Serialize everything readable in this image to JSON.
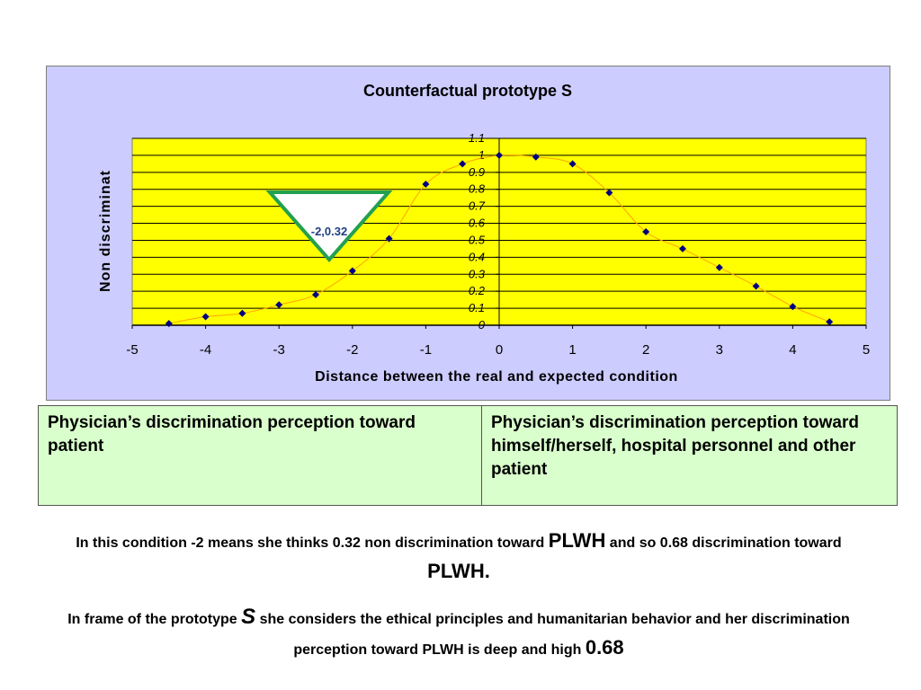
{
  "chart_data": {
    "type": "scatter",
    "title": "Counterfactual prototype S",
    "xlabel": "Distance between the real and expected condition",
    "ylabel": "Non discriminat",
    "xlim": [
      -5,
      5
    ],
    "ylim": [
      0,
      1.1
    ],
    "x_ticks": [
      -5,
      -4,
      -3,
      -2,
      -1,
      0,
      1,
      2,
      3,
      4,
      5
    ],
    "y_ticks": [
      "0",
      "0.1",
      "0.2",
      "0.3",
      "0.4",
      "0.5",
      "0.6",
      "0.7",
      "0.8",
      "0.9",
      "1",
      "1.1"
    ],
    "grid": true,
    "series": [
      {
        "x": [
          -4.5,
          -4,
          -3.5,
          -3,
          -2.5,
          -2,
          -1.5,
          -1,
          -0.5,
          0,
          0.5,
          1,
          1.5,
          2,
          2.5,
          3,
          3.5,
          4,
          4.5
        ],
        "y": [
          0.01,
          0.05,
          0.07,
          0.12,
          0.18,
          0.32,
          0.51,
          0.83,
          0.95,
          1.0,
          0.99,
          0.95,
          0.78,
          0.55,
          0.45,
          0.34,
          0.23,
          0.11,
          0.02
        ],
        "color": "#000080",
        "line_color": "#ffa500"
      }
    ],
    "annotation": {
      "text": "-2,0.32",
      "shape": "inverted-triangle",
      "color": "#22a050"
    },
    "colors": {
      "plot_bg": "#ffff00",
      "frame_bg": "#ccccff"
    }
  },
  "table": {
    "left": "Physician’s discrimination perception toward patient",
    "right": "Physician’s discrimination perception toward himself/herself, hospital personnel and other patient"
  },
  "note1": {
    "part1": "In this condition -2 means she thinks 0.32 non discrimination toward",
    "plwh1": "PLWH",
    "part2": "and so 0.68 discrimination toward",
    "plwh2": "PLWH."
  },
  "note2": {
    "part1": "In frame of the prototype",
    "s": "S",
    "part2": "she considers the ethical principles and humanitarian behavior and her discrimination perception toward PLWH is deep and high",
    "value": "0.68"
  }
}
